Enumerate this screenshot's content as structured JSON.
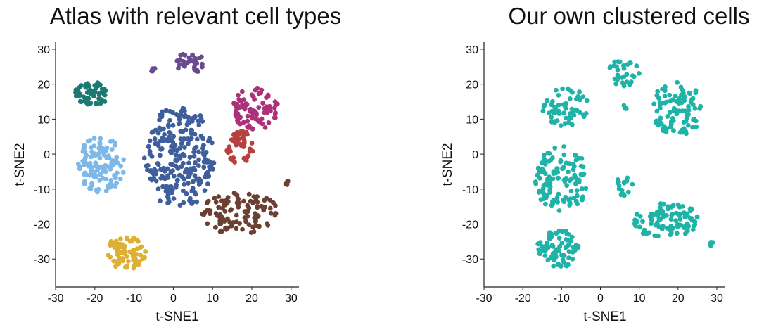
{
  "chart_data": [
    {
      "type": "scatter",
      "title": "Atlas with relevant cell types",
      "xlabel": "t-SNE1",
      "ylabel": "t-SNE2",
      "xlim": [
        -30,
        32
      ],
      "ylim": [
        -38,
        32
      ],
      "xticks": [
        -30,
        -20,
        -10,
        0,
        10,
        20,
        30
      ],
      "yticks": [
        -30,
        -20,
        -10,
        0,
        10,
        20,
        30
      ],
      "legend": "none",
      "grid": false,
      "clusters": [
        {
          "color": "#1d7a72",
          "center": [
            -20.5,
            17.5
          ],
          "spread": [
            4.5,
            3.5
          ],
          "count": 55
        },
        {
          "color": "#6a4a8e",
          "center": [
            4,
            26
          ],
          "spread": [
            4,
            3
          ],
          "count": 30
        },
        {
          "color": "#6a4a8e",
          "center": [
            -5,
            24
          ],
          "spread": [
            0.8,
            0.6
          ],
          "count": 4
        },
        {
          "color": "#3f5e9c",
          "center": [
            1.5,
            -1
          ],
          "spread": [
            9,
            15
          ],
          "count": 250
        },
        {
          "color": "#ab3279",
          "center": [
            21,
            13
          ],
          "spread": [
            6,
            6
          ],
          "count": 85
        },
        {
          "color": "#b8403f",
          "center": [
            17,
            2
          ],
          "spread": [
            3.5,
            5
          ],
          "count": 50
        },
        {
          "color": "#7db8e8",
          "center": [
            -18.5,
            -3
          ],
          "spread": [
            6,
            8
          ],
          "count": 120
        },
        {
          "color": "#6b3f32",
          "center": [
            17,
            -17
          ],
          "spread": [
            10,
            6
          ],
          "count": 110
        },
        {
          "color": "#6b3f32",
          "center": [
            29,
            -8
          ],
          "spread": [
            1.2,
            1
          ],
          "count": 5
        },
        {
          "color": "#dcb035",
          "center": [
            -12,
            -28
          ],
          "spread": [
            5,
            5
          ],
          "count": 70
        }
      ]
    },
    {
      "type": "scatter",
      "title": "Our own clustered cells",
      "xlabel": "t-SNE1",
      "ylabel": "t-SNE2",
      "xlim": [
        -30,
        32
      ],
      "ylim": [
        -38,
        32
      ],
      "xticks": [
        -30,
        -20,
        -10,
        0,
        10,
        20,
        30
      ],
      "yticks": [
        -30,
        -20,
        -10,
        0,
        10,
        20,
        30
      ],
      "legend": "none",
      "grid": false,
      "color": "#1fb3a8",
      "clusters": [
        {
          "color": "#1fb3a8",
          "center": [
            -9,
            13.5
          ],
          "spread": [
            6,
            5.5
          ],
          "count": 60
        },
        {
          "color": "#1fb3a8",
          "center": [
            6,
            23.5
          ],
          "spread": [
            4,
            4
          ],
          "count": 30
        },
        {
          "color": "#1fb3a8",
          "center": [
            6.5,
            13.5
          ],
          "spread": [
            0.8,
            1
          ],
          "count": 4
        },
        {
          "color": "#1fb3a8",
          "center": [
            20,
            13
          ],
          "spread": [
            7,
            7.5
          ],
          "count": 95
        },
        {
          "color": "#1fb3a8",
          "center": [
            -10,
            -7
          ],
          "spread": [
            7,
            9.5
          ],
          "count": 120
        },
        {
          "color": "#1fb3a8",
          "center": [
            6.5,
            -9
          ],
          "spread": [
            2.5,
            3
          ],
          "count": 15
        },
        {
          "color": "#1fb3a8",
          "center": [
            17,
            -19
          ],
          "spread": [
            9,
            5
          ],
          "count": 90
        },
        {
          "color": "#1fb3a8",
          "center": [
            28.5,
            -26
          ],
          "spread": [
            0.8,
            1
          ],
          "count": 4
        },
        {
          "color": "#1fb3a8",
          "center": [
            -11,
            -27
          ],
          "spread": [
            5.5,
            5.5
          ],
          "count": 70
        }
      ]
    }
  ]
}
